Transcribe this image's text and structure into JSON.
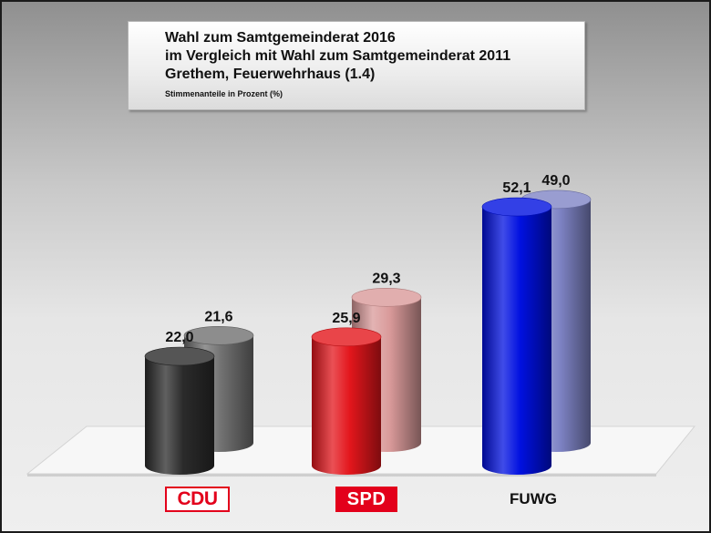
{
  "title_block": {
    "line1": "Wahl zum Samtgemeinderat 2016",
    "line2": "im Vergleich mit Wahl zum Samtgemeinderat 2011",
    "line3": "Grethem, Feuerwehrhaus (1.4)",
    "subtitle": "Stimmenanteile in Prozent (%)"
  },
  "chart_data": {
    "type": "bar",
    "style": "3d-cylinder",
    "categories": [
      "CDU",
      "SPD",
      "FUWG"
    ],
    "series": [
      {
        "name": "2016",
        "values": [
          22.0,
          25.9,
          52.1
        ],
        "labels": [
          "22,0",
          "25,9",
          "52,1"
        ]
      },
      {
        "name": "2011",
        "values": [
          21.6,
          29.3,
          49.0
        ],
        "labels": [
          "21,6",
          "29,3",
          "49,0"
        ]
      }
    ],
    "title": "Wahl zum Samtgemeinderat 2016",
    "ylabel": "Stimmenanteile in Prozent (%)",
    "ylim": [
      0,
      60
    ],
    "grid": false,
    "colors": {
      "CDU": {
        "2016": "#2b2b2b",
        "2011": "#707070"
      },
      "SPD": {
        "2016": "#e3161c",
        "2011": "#d99a9a"
      },
      "FUWG": {
        "2016": "#0010e0",
        "2011": "#7f84c6"
      }
    }
  },
  "category_badges": {
    "cdu": "CDU",
    "spd": "SPD",
    "fuwg": "FUWG"
  }
}
